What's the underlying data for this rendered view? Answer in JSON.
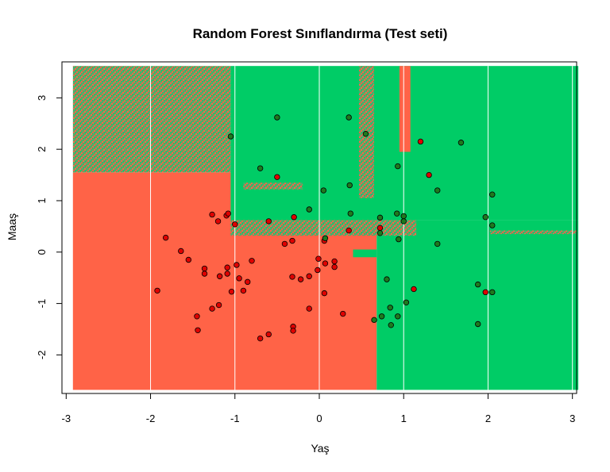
{
  "colors": {
    "red_region": "#FF6347",
    "green_region": "#00CC66",
    "red_point": "#E00000",
    "green_point": "#1E7A1E",
    "point_border": "#000000",
    "grid_line": "#FFFFFF",
    "noise_base": "#4CAF6A"
  },
  "chart_data": {
    "type": "scatter",
    "title": "Random Forest Sınıflandırma (Test seti)",
    "xlabel": "Yaş",
    "ylabel": "Maaş",
    "xlim": [
      -3.05,
      3.05
    ],
    "ylim": [
      -2.75,
      3.7
    ],
    "x_ticks": [
      -3,
      -2,
      -1,
      0,
      1,
      2,
      3
    ],
    "y_ticks": [
      -2,
      -1,
      0,
      1,
      2,
      3
    ],
    "x_tick_labels": [
      "-3",
      "-2",
      "-1",
      "0",
      "1",
      "2",
      "3"
    ],
    "y_tick_labels": [
      "-2",
      "-1",
      "0",
      "1",
      "2",
      "3"
    ],
    "grid": true,
    "legend": "none",
    "regions": [
      {
        "class": 0,
        "x0": -2.92,
        "x1": 0.68,
        "y0": -2.68,
        "y1": 1.55
      },
      {
        "class": 0,
        "x0": -2.92,
        "x1": -1.05,
        "y0": 1.55,
        "y1": 3.62,
        "noise": true
      },
      {
        "class": 1,
        "x0": -1.05,
        "x1": 3.07,
        "y0": 0.62,
        "y1": 3.62
      },
      {
        "class": 1,
        "x0": 0.68,
        "x1": 3.07,
        "y0": -2.68,
        "y1": 0.62
      },
      {
        "class": 0,
        "x0": -1.05,
        "x1": 1.15,
        "y0": 0.32,
        "y1": 0.62,
        "noise": true
      },
      {
        "class": 0,
        "x0": 0.95,
        "x1": 1.08,
        "y0": 1.95,
        "y1": 3.62
      },
      {
        "class": 0,
        "x0": 0.47,
        "x1": 0.65,
        "y0": 1.05,
        "y1": 3.62,
        "noise": true
      },
      {
        "class": 0,
        "x0": -0.9,
        "x1": -0.2,
        "y0": 1.22,
        "y1": 1.35,
        "noise": true
      },
      {
        "class": 0,
        "x0": 2.02,
        "x1": 3.05,
        "y0": 0.35,
        "y1": 0.42,
        "noise": true
      },
      {
        "class": 1,
        "x0": 0.7,
        "x1": 1.15,
        "y0": -0.55,
        "y1": 0.0
      },
      {
        "class": 1,
        "x0": 0.4,
        "x1": 0.68,
        "y0": -0.1,
        "y1": 0.05
      }
    ],
    "series": [
      {
        "name": "",
        "class": 0,
        "points": [
          [
            -1.92,
            -0.75
          ],
          [
            -1.82,
            0.28
          ],
          [
            -1.64,
            0.02
          ],
          [
            -1.55,
            -0.15
          ],
          [
            -1.45,
            -1.25
          ],
          [
            -1.44,
            -1.52
          ],
          [
            -1.36,
            -0.32
          ],
          [
            -1.36,
            -0.42
          ],
          [
            -1.27,
            0.73
          ],
          [
            -1.27,
            -1.1
          ],
          [
            -1.2,
            0.6
          ],
          [
            -1.19,
            -1.03
          ],
          [
            -1.18,
            -0.47
          ],
          [
            -1.1,
            0.71
          ],
          [
            -1.08,
            0.75
          ],
          [
            -1.09,
            -0.3
          ],
          [
            -1.09,
            -0.42
          ],
          [
            -1.04,
            -0.77
          ],
          [
            -1.0,
            0.54
          ],
          [
            -0.98,
            -0.25
          ],
          [
            -0.95,
            -0.51
          ],
          [
            -0.9,
            -0.75
          ],
          [
            -0.85,
            -0.58
          ],
          [
            -0.8,
            -0.17
          ],
          [
            -0.7,
            -1.68
          ],
          [
            -0.6,
            -1.6
          ],
          [
            -0.6,
            0.6
          ],
          [
            -0.5,
            1.46
          ],
          [
            -0.41,
            0.16
          ],
          [
            -0.32,
            0.22
          ],
          [
            -0.3,
            0.68
          ],
          [
            -0.31,
            -1.45
          ],
          [
            -0.31,
            -1.53
          ],
          [
            -0.32,
            -0.48
          ],
          [
            -0.22,
            -0.53
          ],
          [
            -0.12,
            -0.47
          ],
          [
            -0.12,
            -1.1
          ],
          [
            -0.02,
            -0.35
          ],
          [
            -0.01,
            -0.13
          ],
          [
            0.06,
            0.22
          ],
          [
            0.06,
            -0.8
          ],
          [
            0.07,
            -0.22
          ],
          [
            0.18,
            -0.18
          ],
          [
            0.18,
            -0.29
          ],
          [
            0.28,
            -1.2
          ],
          [
            0.35,
            0.42
          ],
          [
            0.72,
            0.47
          ],
          [
            1.12,
            -0.72
          ],
          [
            1.2,
            2.15
          ],
          [
            1.3,
            1.5
          ],
          [
            1.97,
            -0.78
          ]
        ]
      },
      {
        "name": "",
        "class": 1,
        "points": [
          [
            -1.05,
            2.25
          ],
          [
            -0.7,
            1.63
          ],
          [
            -0.5,
            2.62
          ],
          [
            -0.12,
            0.83
          ],
          [
            0.05,
            1.2
          ],
          [
            0.07,
            0.27
          ],
          [
            0.35,
            2.62
          ],
          [
            0.36,
            1.3
          ],
          [
            0.37,
            0.75
          ],
          [
            0.55,
            2.3
          ],
          [
            0.65,
            -1.32
          ],
          [
            0.72,
            0.67
          ],
          [
            0.72,
            0.37
          ],
          [
            0.74,
            -1.25
          ],
          [
            0.8,
            -0.53
          ],
          [
            0.84,
            -1.08
          ],
          [
            0.85,
            -1.42
          ],
          [
            0.92,
            0.75
          ],
          [
            0.93,
            1.67
          ],
          [
            0.93,
            -1.25
          ],
          [
            0.94,
            0.25
          ],
          [
            1.0,
            0.6
          ],
          [
            1.0,
            0.7
          ],
          [
            1.03,
            -0.98
          ],
          [
            1.4,
            1.2
          ],
          [
            1.4,
            0.16
          ],
          [
            1.68,
            2.13
          ],
          [
            1.88,
            -0.63
          ],
          [
            1.88,
            -1.4
          ],
          [
            1.97,
            0.68
          ],
          [
            2.05,
            1.12
          ],
          [
            2.05,
            0.52
          ],
          [
            2.05,
            -0.78
          ]
        ]
      }
    ]
  }
}
